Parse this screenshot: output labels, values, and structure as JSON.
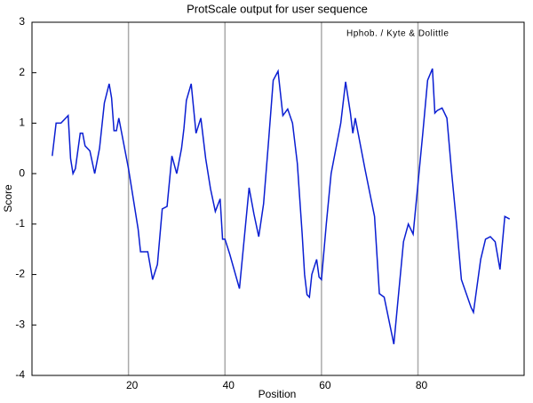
{
  "chart_data": {
    "type": "line",
    "title": "ProtScale output for user sequence",
    "annotation": "Hphob.  / Kyte & Dolittle",
    "x_label": "Position",
    "y_label": "Score",
    "xlim": [
      0,
      102
    ],
    "ylim": [
      -4,
      3
    ],
    "xticks": [
      20,
      40,
      60,
      80
    ],
    "yticks": [
      -4,
      -3,
      -2,
      -1,
      0,
      1,
      2,
      3
    ],
    "grid": "x",
    "series": [
      {
        "name": "Hphob.  / Kyte & Dolittle",
        "color": "#0a1ed2",
        "x": [
          4.2,
          5,
          6,
          7,
          7.5,
          8,
          8.5,
          9,
          10,
          10.5,
          11,
          12,
          13,
          14,
          15,
          16,
          16.5,
          17,
          17.5,
          18,
          19,
          20,
          21,
          22,
          22.5,
          23,
          24,
          25,
          26,
          27,
          28,
          29,
          30,
          31,
          31.5,
          32,
          33,
          34,
          35,
          36,
          37,
          38,
          39,
          39.5,
          40,
          41,
          43,
          45,
          46,
          47,
          48,
          49,
          50,
          51,
          52,
          53,
          54,
          55,
          56,
          56.5,
          57,
          57.5,
          58,
          59,
          59.5,
          60,
          61,
          62,
          63,
          64,
          65,
          66,
          66.5,
          67,
          68,
          69,
          71,
          72,
          73,
          75,
          77,
          78,
          79,
          81,
          82,
          83,
          83.5,
          84,
          85,
          86,
          87,
          88,
          89,
          91,
          91.5,
          93,
          94,
          95,
          96,
          97,
          98,
          99
        ],
        "values": [
          0.35,
          1.0,
          1.0,
          1.1,
          1.15,
          0.3,
          0.0,
          0.1,
          0.8,
          0.8,
          0.55,
          0.45,
          0.0,
          0.5,
          1.4,
          1.78,
          1.5,
          0.85,
          0.85,
          1.1,
          0.6,
          0.1,
          -0.5,
          -1.1,
          -1.55,
          -1.55,
          -1.55,
          -2.1,
          -1.8,
          -0.7,
          -0.65,
          0.35,
          0.0,
          0.5,
          0.9,
          1.45,
          1.78,
          0.8,
          1.1,
          0.3,
          -0.3,
          -0.75,
          -0.5,
          -1.3,
          -1.3,
          -1.6,
          -2.28,
          -0.28,
          -0.8,
          -1.25,
          -0.6,
          0.6,
          1.85,
          2.03,
          1.15,
          1.28,
          1.0,
          0.2,
          -1.2,
          -2.0,
          -2.4,
          -2.45,
          -2.0,
          -1.7,
          -2.05,
          -2.1,
          -1.0,
          0.0,
          0.5,
          1.0,
          1.82,
          1.2,
          0.8,
          1.1,
          0.6,
          0.1,
          -0.85,
          -2.38,
          -2.45,
          -3.38,
          -1.35,
          -1.0,
          -1.2,
          0.8,
          1.85,
          2.08,
          1.2,
          1.25,
          1.3,
          1.1,
          0.0,
          -1.0,
          -2.1,
          -2.65,
          -2.75,
          -1.7,
          -1.3,
          -1.25,
          -1.35,
          -1.9,
          -0.85,
          -0.9
        ]
      }
    ]
  }
}
